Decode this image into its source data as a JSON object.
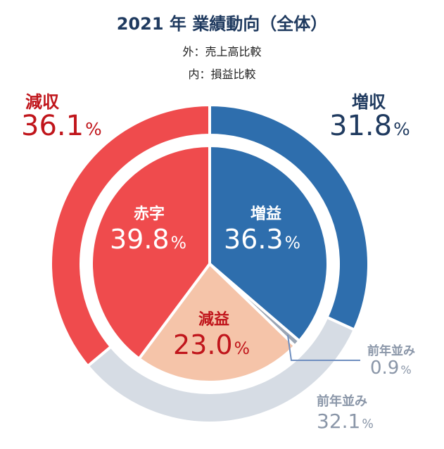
{
  "title": "2021 年  業績動向（全体）",
  "subtitle_outer": "外：売上高比較",
  "subtitle_inner": "内：損益比較",
  "colors": {
    "increase": "#2e6ead",
    "decrease": "#ef4b4d",
    "flat": "#d6dce4",
    "inner_loss": "#ef4b4d",
    "inner_profit_up": "#2e6ead",
    "inner_profit_down": "#f5c4a9",
    "inner_flat": "#9aa5b4",
    "label_dark_blue": "#1f3a5f",
    "label_red": "#c0151b",
    "label_gray": "#8a96a8"
  },
  "chart_data": [
    {
      "type": "pie",
      "ring": "outer",
      "title": "外：売上高比較",
      "slices": [
        {
          "name": "増収",
          "value": 31.8,
          "color": "#2e6ead",
          "label": "増収",
          "value_label": "31.8"
        },
        {
          "name": "前年並み",
          "value": 32.1,
          "color": "#d6dce4",
          "label": "前年並み",
          "value_label": "32.1"
        },
        {
          "name": "減収",
          "value": 36.1,
          "color": "#ef4b4d",
          "label": "減収",
          "value_label": "36.1"
        }
      ]
    },
    {
      "type": "pie",
      "ring": "inner",
      "title": "内：損益比較",
      "slices": [
        {
          "name": "増益",
          "value": 36.3,
          "color": "#2e6ead",
          "label": "増益",
          "value_label": "36.3"
        },
        {
          "name": "前年並み",
          "value": 0.9,
          "color": "#9aa5b4",
          "label": "前年並み",
          "value_label": "0.9"
        },
        {
          "name": "減益",
          "value": 23.0,
          "color": "#f5c4a9",
          "label": "減益",
          "value_label": "23.0"
        },
        {
          "name": "赤字",
          "value": 39.8,
          "color": "#ef4b4d",
          "label": "赤字",
          "value_label": "39.8"
        }
      ]
    }
  ],
  "percent_sign": "%"
}
